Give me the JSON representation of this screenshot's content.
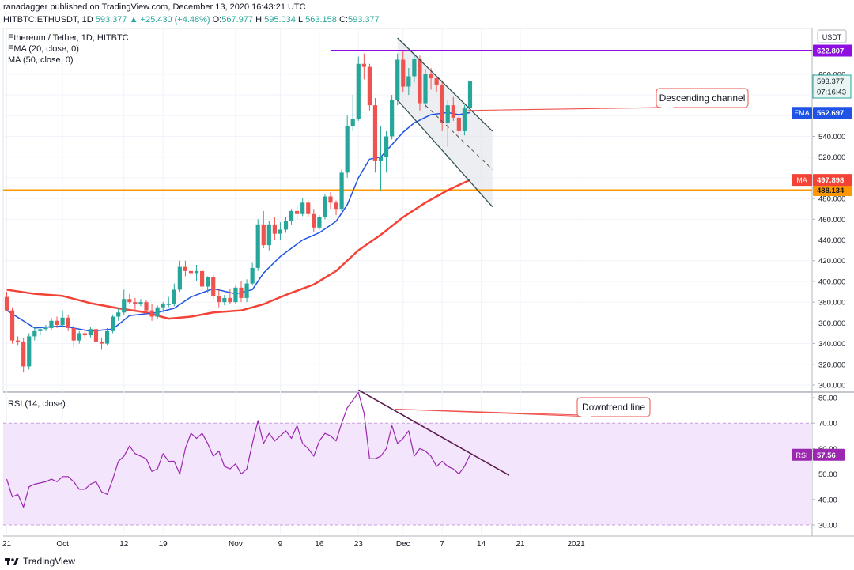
{
  "header": {
    "line1": "ranadagger published on TradingView.com, December 13, 2020 16:43:21 UTC",
    "symbol": "HITBTC:ETHUSDT, 1D",
    "price": "593.377",
    "change": "▲ +25.430 (+4.48%)",
    "o_label": "O:",
    "o_value": "567.977",
    "h_label": "H:",
    "h_value": "595.034",
    "l_label": "L:",
    "l_value": "563.158",
    "c_label": "C:",
    "c_value": "593.377"
  },
  "legend": {
    "title": "Ethereum / Tether, 1D, HITBTC",
    "ema": "EMA (20, close, 0)",
    "ma": "MA (50, close, 0)",
    "rsi": "RSI (14, close)"
  },
  "currency": "USDT",
  "footer": {
    "brand": "TradingView"
  },
  "colors": {
    "up": "#26a69a",
    "down": "#ef5350",
    "ema": "#1e53e5",
    "ma": "#f44336",
    "resistance": "#8e0fe0",
    "support": "#ff9800",
    "rsi": "#9c27b0",
    "rsi_band": "#f3e5fb",
    "channel": "#2f4f4f",
    "downtrend": "#5a1a4f"
  },
  "chart_data": [
    {
      "type": "candlestick",
      "title": "Ethereum / Tether, 1D, HITBTC",
      "x_tick_labels": [
        "21",
        "Oct",
        "12",
        "19",
        "Nov",
        "9",
        "16",
        "23",
        "Dec",
        "7",
        "14",
        "21",
        "2021"
      ],
      "x_tick_days": [
        0,
        10,
        21,
        28,
        41,
        49,
        56,
        63,
        71,
        78,
        85,
        92,
        102
      ],
      "y_ticks": [
        300,
        320,
        340,
        360,
        380,
        400,
        420,
        440,
        460,
        480,
        500,
        520,
        540,
        560,
        580,
        600
      ],
      "y_tick_labels": [
        "300.000",
        "320.000",
        "340.000",
        "360.000",
        "380.000",
        "400.000",
        "420.000",
        "440.000",
        "460.000",
        "480.000",
        "500.000",
        "520.000",
        "540.000",
        "560.000",
        "580.000",
        "600.000"
      ],
      "ylim": [
        290,
        637
      ],
      "candles": [
        {
          "d": 0,
          "o": 385,
          "h": 390,
          "l": 375,
          "c": 372
        },
        {
          "d": 1,
          "o": 372,
          "h": 375,
          "l": 340,
          "c": 343
        },
        {
          "d": 2,
          "o": 343,
          "h": 347,
          "l": 338,
          "c": 342
        },
        {
          "d": 3,
          "o": 342,
          "h": 345,
          "l": 312,
          "c": 318
        },
        {
          "d": 4,
          "o": 318,
          "h": 350,
          "l": 315,
          "c": 347
        },
        {
          "d": 5,
          "o": 347,
          "h": 356,
          "l": 343,
          "c": 352
        },
        {
          "d": 6,
          "o": 352,
          "h": 356,
          "l": 348,
          "c": 354
        },
        {
          "d": 7,
          "o": 354,
          "h": 358,
          "l": 352,
          "c": 355
        },
        {
          "d": 8,
          "o": 355,
          "h": 365,
          "l": 353,
          "c": 362
        },
        {
          "d": 9,
          "o": 362,
          "h": 366,
          "l": 355,
          "c": 358
        },
        {
          "d": 10,
          "o": 358,
          "h": 372,
          "l": 356,
          "c": 365
        },
        {
          "d": 11,
          "o": 365,
          "h": 368,
          "l": 352,
          "c": 355
        },
        {
          "d": 12,
          "o": 355,
          "h": 358,
          "l": 337,
          "c": 343
        },
        {
          "d": 13,
          "o": 343,
          "h": 352,
          "l": 340,
          "c": 350
        },
        {
          "d": 14,
          "o": 350,
          "h": 353,
          "l": 345,
          "c": 348
        },
        {
          "d": 15,
          "o": 348,
          "h": 356,
          "l": 346,
          "c": 354
        },
        {
          "d": 16,
          "o": 354,
          "h": 357,
          "l": 340,
          "c": 342
        },
        {
          "d": 17,
          "o": 342,
          "h": 346,
          "l": 334,
          "c": 340
        },
        {
          "d": 18,
          "o": 340,
          "h": 355,
          "l": 338,
          "c": 352
        },
        {
          "d": 19,
          "o": 352,
          "h": 368,
          "l": 350,
          "c": 366
        },
        {
          "d": 20,
          "o": 366,
          "h": 374,
          "l": 362,
          "c": 370
        },
        {
          "d": 21,
          "o": 370,
          "h": 392,
          "l": 368,
          "c": 383
        },
        {
          "d": 22,
          "o": 383,
          "h": 388,
          "l": 378,
          "c": 380
        },
        {
          "d": 23,
          "o": 380,
          "h": 384,
          "l": 372,
          "c": 378
        },
        {
          "d": 24,
          "o": 378,
          "h": 383,
          "l": 376,
          "c": 380
        },
        {
          "d": 25,
          "o": 380,
          "h": 382,
          "l": 368,
          "c": 372
        },
        {
          "d": 26,
          "o": 372,
          "h": 378,
          "l": 362,
          "c": 366
        },
        {
          "d": 27,
          "o": 366,
          "h": 377,
          "l": 364,
          "c": 375
        },
        {
          "d": 28,
          "o": 375,
          "h": 380,
          "l": 370,
          "c": 378
        },
        {
          "d": 29,
          "o": 378,
          "h": 385,
          "l": 375,
          "c": 378
        },
        {
          "d": 30,
          "o": 378,
          "h": 398,
          "l": 376,
          "c": 392
        },
        {
          "d": 31,
          "o": 392,
          "h": 420,
          "l": 390,
          "c": 414
        },
        {
          "d": 32,
          "o": 414,
          "h": 420,
          "l": 405,
          "c": 410
        },
        {
          "d": 33,
          "o": 410,
          "h": 414,
          "l": 404,
          "c": 408
        },
        {
          "d": 34,
          "o": 408,
          "h": 416,
          "l": 400,
          "c": 410
        },
        {
          "d": 35,
          "o": 410,
          "h": 413,
          "l": 390,
          "c": 395
        },
        {
          "d": 36,
          "o": 395,
          "h": 405,
          "l": 389,
          "c": 404
        },
        {
          "d": 37,
          "o": 404,
          "h": 407,
          "l": 383,
          "c": 386
        },
        {
          "d": 38,
          "o": 386,
          "h": 392,
          "l": 375,
          "c": 380
        },
        {
          "d": 39,
          "o": 380,
          "h": 387,
          "l": 377,
          "c": 384
        },
        {
          "d": 40,
          "o": 384,
          "h": 393,
          "l": 378,
          "c": 380
        },
        {
          "d": 41,
          "o": 380,
          "h": 396,
          "l": 378,
          "c": 394
        },
        {
          "d": 42,
          "o": 394,
          "h": 400,
          "l": 380,
          "c": 384
        },
        {
          "d": 43,
          "o": 384,
          "h": 402,
          "l": 380,
          "c": 398
        },
        {
          "d": 44,
          "o": 398,
          "h": 418,
          "l": 396,
          "c": 413
        },
        {
          "d": 45,
          "o": 413,
          "h": 460,
          "l": 410,
          "c": 455
        },
        {
          "d": 46,
          "o": 455,
          "h": 468,
          "l": 432,
          "c": 435
        },
        {
          "d": 47,
          "o": 435,
          "h": 458,
          "l": 430,
          "c": 455
        },
        {
          "d": 48,
          "o": 455,
          "h": 462,
          "l": 440,
          "c": 446
        },
        {
          "d": 49,
          "o": 446,
          "h": 457,
          "l": 440,
          "c": 450
        },
        {
          "d": 50,
          "o": 450,
          "h": 462,
          "l": 447,
          "c": 458
        },
        {
          "d": 51,
          "o": 458,
          "h": 470,
          "l": 455,
          "c": 468
        },
        {
          "d": 52,
          "o": 468,
          "h": 474,
          "l": 460,
          "c": 465
        },
        {
          "d": 53,
          "o": 465,
          "h": 480,
          "l": 463,
          "c": 476
        },
        {
          "d": 54,
          "o": 476,
          "h": 478,
          "l": 462,
          "c": 465
        },
        {
          "d": 55,
          "o": 465,
          "h": 470,
          "l": 448,
          "c": 452
        },
        {
          "d": 56,
          "o": 452,
          "h": 464,
          "l": 450,
          "c": 462
        },
        {
          "d": 57,
          "o": 462,
          "h": 484,
          "l": 460,
          "c": 482
        },
        {
          "d": 58,
          "o": 482,
          "h": 486,
          "l": 470,
          "c": 476
        },
        {
          "d": 59,
          "o": 476,
          "h": 478,
          "l": 464,
          "c": 470
        },
        {
          "d": 60,
          "o": 470,
          "h": 508,
          "l": 468,
          "c": 505
        },
        {
          "d": 61,
          "o": 505,
          "h": 560,
          "l": 500,
          "c": 550
        },
        {
          "d": 62,
          "o": 550,
          "h": 580,
          "l": 545,
          "c": 557
        },
        {
          "d": 63,
          "o": 557,
          "h": 617,
          "l": 555,
          "c": 610
        },
        {
          "d": 64,
          "o": 610,
          "h": 620,
          "l": 595,
          "c": 607
        },
        {
          "d": 65,
          "o": 607,
          "h": 610,
          "l": 565,
          "c": 570
        },
        {
          "d": 66,
          "o": 570,
          "h": 577,
          "l": 505,
          "c": 516
        },
        {
          "d": 67,
          "o": 516,
          "h": 550,
          "l": 488,
          "c": 520
        },
        {
          "d": 68,
          "o": 520,
          "h": 545,
          "l": 505,
          "c": 540
        },
        {
          "d": 69,
          "o": 540,
          "h": 580,
          "l": 537,
          "c": 575
        },
        {
          "d": 70,
          "o": 575,
          "h": 620,
          "l": 570,
          "c": 614
        },
        {
          "d": 71,
          "o": 614,
          "h": 622,
          "l": 583,
          "c": 588
        },
        {
          "d": 72,
          "o": 588,
          "h": 606,
          "l": 580,
          "c": 598
        },
        {
          "d": 73,
          "o": 598,
          "h": 620,
          "l": 592,
          "c": 615
        },
        {
          "d": 74,
          "o": 615,
          "h": 618,
          "l": 565,
          "c": 572
        },
        {
          "d": 75,
          "o": 572,
          "h": 605,
          "l": 568,
          "c": 600
        },
        {
          "d": 76,
          "o": 600,
          "h": 606,
          "l": 585,
          "c": 596
        },
        {
          "d": 77,
          "o": 596,
          "h": 598,
          "l": 583,
          "c": 590
        },
        {
          "d": 78,
          "o": 590,
          "h": 594,
          "l": 545,
          "c": 553
        },
        {
          "d": 79,
          "o": 553,
          "h": 575,
          "l": 530,
          "c": 570
        },
        {
          "d": 80,
          "o": 570,
          "h": 578,
          "l": 555,
          "c": 558
        },
        {
          "d": 81,
          "o": 558,
          "h": 562,
          "l": 540,
          "c": 545
        },
        {
          "d": 82,
          "o": 545,
          "h": 570,
          "l": 541,
          "c": 567
        },
        {
          "d": 83,
          "o": 567,
          "h": 595,
          "l": 563,
          "c": 593
        }
      ],
      "ema20": [
        {
          "d": 0,
          "v": 372
        },
        {
          "d": 5,
          "v": 355
        },
        {
          "d": 10,
          "v": 357
        },
        {
          "d": 15,
          "v": 352
        },
        {
          "d": 19,
          "v": 354
        },
        {
          "d": 22,
          "v": 367
        },
        {
          "d": 27,
          "v": 370
        },
        {
          "d": 30,
          "v": 374
        },
        {
          "d": 33,
          "v": 385
        },
        {
          "d": 37,
          "v": 393
        },
        {
          "d": 41,
          "v": 388
        },
        {
          "d": 44,
          "v": 392
        },
        {
          "d": 46,
          "v": 408
        },
        {
          "d": 49,
          "v": 424
        },
        {
          "d": 53,
          "v": 440
        },
        {
          "d": 56,
          "v": 447
        },
        {
          "d": 59,
          "v": 458
        },
        {
          "d": 61,
          "v": 474
        },
        {
          "d": 63,
          "v": 500
        },
        {
          "d": 65,
          "v": 518
        },
        {
          "d": 67,
          "v": 520
        },
        {
          "d": 69,
          "v": 532
        },
        {
          "d": 71,
          "v": 544
        },
        {
          "d": 73,
          "v": 553
        },
        {
          "d": 76,
          "v": 561
        },
        {
          "d": 79,
          "v": 563
        },
        {
          "d": 81,
          "v": 561
        },
        {
          "d": 83,
          "v": 563
        }
      ],
      "ma50": [
        {
          "d": 0,
          "v": 392
        },
        {
          "d": 5,
          "v": 388
        },
        {
          "d": 10,
          "v": 386
        },
        {
          "d": 15,
          "v": 379
        },
        {
          "d": 20,
          "v": 374
        },
        {
          "d": 25,
          "v": 370
        },
        {
          "d": 29,
          "v": 364
        },
        {
          "d": 33,
          "v": 366
        },
        {
          "d": 37,
          "v": 370
        },
        {
          "d": 42,
          "v": 372
        },
        {
          "d": 46,
          "v": 378
        },
        {
          "d": 50,
          "v": 387
        },
        {
          "d": 55,
          "v": 397
        },
        {
          "d": 59,
          "v": 410
        },
        {
          "d": 63,
          "v": 430
        },
        {
          "d": 67,
          "v": 445
        },
        {
          "d": 71,
          "v": 462
        },
        {
          "d": 75,
          "v": 476
        },
        {
          "d": 79,
          "v": 488
        },
        {
          "d": 83,
          "v": 498
        }
      ],
      "resistance": {
        "value": 622.807,
        "label": "622.807",
        "from_d": 58
      },
      "support": {
        "value": 488.134,
        "label": "488.134"
      },
      "channel": {
        "upper": [
          [
            70,
            635
          ],
          [
            87,
            545
          ]
        ],
        "lower": [
          [
            70,
            575
          ],
          [
            87,
            472
          ]
        ],
        "mid": [
          [
            75,
            570
          ],
          [
            87,
            508
          ]
        ],
        "label": "Descending channel"
      },
      "price_tags": [
        {
          "name": "last-price",
          "label": "593.377",
          "sub": "07:16:43",
          "value": 593.377
        },
        {
          "name": "ema",
          "tag": "EMA",
          "label": "562.697",
          "value": 562.697
        },
        {
          "name": "ma",
          "tag": "MA",
          "label": "497.898",
          "value": 497.898
        }
      ]
    },
    {
      "type": "line",
      "title": "RSI (14, close)",
      "ylim": [
        25,
        85
      ],
      "y_ticks": [
        30,
        40,
        50,
        60,
        70,
        80
      ],
      "y_tick_labels": [
        "30.00",
        "40.00",
        "50.00",
        "60.00",
        "70.00",
        "80.00"
      ],
      "band": [
        30,
        70
      ],
      "series": [
        {
          "values": [
            48,
            41,
            42,
            37,
            45,
            46,
            46.5,
            47,
            48,
            47,
            49,
            49,
            47,
            44,
            44,
            46,
            47,
            43,
            42,
            48,
            55,
            57,
            61,
            58,
            57,
            56,
            51,
            52,
            58,
            55,
            55,
            50,
            60,
            66,
            64,
            66,
            62,
            57,
            59,
            53,
            52,
            54,
            50,
            52,
            62,
            71,
            62,
            66,
            63,
            65,
            67,
            64,
            69,
            62,
            60,
            57,
            63,
            66,
            65,
            63,
            70,
            76,
            79,
            82,
            74,
            56,
            56,
            57,
            60,
            69,
            62,
            64,
            67,
            57,
            60,
            59,
            57,
            53,
            55,
            53,
            52,
            50,
            53,
            57.56
          ]
        }
      ],
      "downtrend": {
        "from": [
          63,
          83
        ],
        "to": [
          90,
          49.5
        ],
        "label": "Downtrend line"
      },
      "price_tag": {
        "tag": "RSI",
        "label": "57.56",
        "value": 57.56
      }
    }
  ]
}
